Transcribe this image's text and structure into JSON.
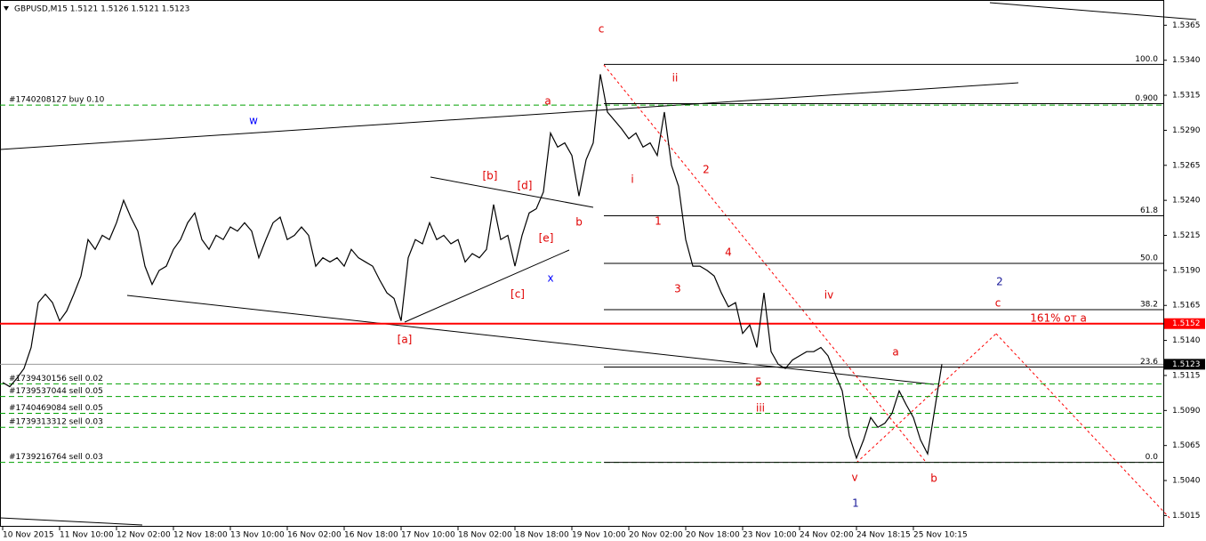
{
  "chart_data": {
    "type": "line",
    "title": "GBPUSD,M15  1.5121 1.5126 1.5121 1.5123",
    "color": "#000000",
    "categories": [
      "10 Nov 2015",
      null,
      null,
      null,
      null,
      null,
      null,
      null,
      "11 Nov 10:00",
      null,
      null,
      null,
      null,
      null,
      null,
      null,
      "12 Nov 02:00",
      null,
      null,
      null,
      null,
      null,
      null,
      null,
      "12 Nov 18:00",
      null,
      null,
      null,
      null,
      null,
      null,
      null,
      "13 Nov 10:00",
      null,
      null,
      null,
      null,
      null,
      null,
      null,
      "16 Nov 02:00",
      null,
      null,
      null,
      null,
      null,
      null,
      null,
      "16 Nov 18:00",
      null,
      null,
      null,
      null,
      null,
      null,
      null,
      "17 Nov 10:00",
      null,
      null,
      null,
      null,
      null,
      null,
      null,
      "18 Nov 02:00",
      null,
      null,
      null,
      null,
      null,
      null,
      null,
      "18 Nov 18:00",
      null,
      null,
      null,
      null,
      null,
      null,
      null,
      "19 Nov 10:00",
      null,
      null,
      null,
      null,
      null,
      null,
      null,
      "20 Nov 02:00",
      null,
      null,
      null,
      null,
      null,
      null,
      null,
      "20 Nov 18:00",
      null,
      null,
      null,
      null,
      null,
      null,
      null,
      "23 Nov 10:00",
      null,
      null,
      null,
      null,
      null,
      null,
      null,
      "24 Nov 02:00",
      null,
      null,
      null,
      null,
      null,
      null,
      null,
      "24 Nov 18:15",
      null,
      null,
      null,
      null,
      null,
      null,
      null,
      "25 Nov 10:15",
      null,
      null,
      null,
      null
    ],
    "values": [
      1.511,
      1.5107,
      1.5113,
      1.512,
      1.5135,
      1.5167,
      1.5173,
      1.5167,
      1.5154,
      1.5161,
      1.5173,
      1.5186,
      1.5212,
      1.5205,
      1.5215,
      1.5212,
      1.5224,
      1.524,
      1.5228,
      1.5218,
      1.5193,
      1.518,
      1.519,
      1.5193,
      1.5205,
      1.5212,
      1.5224,
      1.5231,
      1.5212,
      1.5205,
      1.5215,
      1.5212,
      1.5221,
      1.5218,
      1.5224,
      1.5218,
      1.5199,
      1.5212,
      1.5224,
      1.5228,
      1.5212,
      1.5215,
      1.5221,
      1.5215,
      1.5193,
      1.5199,
      1.5196,
      1.5199,
      1.5193,
      1.5205,
      1.5199,
      1.5196,
      1.5193,
      1.5183,
      1.5174,
      1.517,
      1.5154,
      1.5199,
      1.5212,
      1.5209,
      1.5224,
      1.5212,
      1.5215,
      1.5209,
      1.5212,
      1.5196,
      1.5202,
      1.5199,
      1.5205,
      1.5237,
      1.5212,
      1.5215,
      1.5193,
      1.5215,
      1.5231,
      1.5234,
      1.5246,
      1.5288,
      1.5278,
      1.5281,
      1.5272,
      1.5243,
      1.5269,
      1.5281,
      1.533,
      1.5303,
      1.5297,
      1.5291,
      1.5284,
      1.5288,
      1.5278,
      1.5281,
      1.5272,
      1.5303,
      1.5265,
      1.525,
      1.5212,
      1.5193,
      1.5193,
      1.519,
      1.5186,
      1.5174,
      1.5164,
      1.5167,
      1.5145,
      1.5151,
      1.5135,
      1.5174,
      1.5132,
      1.5123,
      1.512,
      1.5126,
      1.5129,
      1.5132,
      1.5132,
      1.5135,
      1.5129,
      1.5116,
      1.5104,
      1.5072,
      1.5056,
      1.5069,
      1.5085,
      1.5078,
      1.5081,
      1.5088,
      1.5104,
      1.5094,
      1.5085,
      1.5069,
      1.5059,
      1.5091,
      1.5123
    ],
    "ylim": [
      1.5007,
      1.5383
    ],
    "yticks": [
      1.5015,
      {
        "value": 1.504,
        "label": "1.5040"
      },
      1.5065,
      {
        "value": 1.509,
        "label": "1.5090"
      },
      1.5115,
      {
        "value": 1.514,
        "label": "1.5140"
      },
      1.5165,
      {
        "value": 1.519,
        "label": "1.5190"
      },
      1.5215,
      {
        "value": 1.524,
        "label": "1.5240"
      },
      1.5265,
      {
        "value": 1.529,
        "label": "1.5290"
      },
      1.5315,
      {
        "value": 1.534,
        "label": "1.5340"
      },
      1.5365
    ],
    "price_line": {
      "value": 1.5152,
      "color": "#ff0000"
    },
    "last_price": {
      "value": 1.5123
    },
    "fib_levels": [
      {
        "label": "100.0",
        "value": 1.5337
      },
      {
        "label": "0.900",
        "value": 1.5309
      },
      {
        "label": "61.8",
        "value": 1.5229
      },
      {
        "label": "50.0",
        "value": 1.5195
      },
      {
        "label": "38.2",
        "value": 1.5162
      },
      {
        "label": "23.6",
        "value": 1.5121
      },
      {
        "label": "0.0",
        "value": 1.5053
      }
    ],
    "order_color": "#00a000",
    "orders": [
      {
        "label": "#1740208127 buy 0.10",
        "value": 1.5308
      },
      {
        "label": "#1739430156 sell 0.02",
        "value": 1.5109
      },
      {
        "label": "#1739537044 sell 0.05",
        "value": 1.51
      },
      {
        "label": "#1740469084 sell 0.05",
        "value": 1.5088
      },
      {
        "label": "#1739313312 sell 0.03",
        "value": 1.5078
      },
      {
        "label": "#1739216764 sell 0.03",
        "value": 1.5053
      }
    ],
    "annotations": [
      {
        "text": "w",
        "color": "#0000ff"
      },
      {
        "text": "x",
        "color": "#0000ff"
      },
      {
        "text": "a",
        "color": "#e00000"
      },
      {
        "text": "[b]",
        "color": "#e00000"
      },
      {
        "text": "[d]",
        "color": "#e00000"
      },
      {
        "text": "[e]",
        "color": "#e00000"
      },
      {
        "text": "b",
        "color": "#e00000"
      },
      {
        "text": "[c]",
        "color": "#e00000"
      },
      {
        "text": "[a]",
        "color": "#e00000"
      },
      {
        "text": "c",
        "color": "#e00000"
      },
      {
        "text": "ii",
        "color": "#e00000"
      },
      {
        "text": "i",
        "color": "#e00000"
      },
      {
        "text": "2",
        "color": "#e00000"
      },
      {
        "text": "1",
        "color": "#e00000"
      },
      {
        "text": "4",
        "color": "#e00000"
      },
      {
        "text": "3",
        "color": "#e00000"
      },
      {
        "text": "iv",
        "color": "#e00000"
      },
      {
        "text": "5",
        "color": "#e00000"
      },
      {
        "text": "iii",
        "color": "#e00000"
      },
      {
        "text": "a",
        "color": "#e00000"
      },
      {
        "text": "v",
        "color": "#e00000"
      },
      {
        "text": "b",
        "color": "#e00000"
      },
      {
        "text": "1",
        "color": "#1a1a99"
      },
      {
        "text": "2",
        "color": "#1a1a99"
      },
      {
        "text": "c",
        "color": "#e00000"
      },
      {
        "text": "161% от а",
        "color": "#e00000"
      }
    ]
  }
}
